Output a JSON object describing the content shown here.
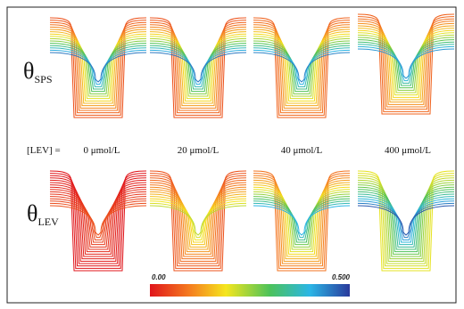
{
  "rows": [
    {
      "symbol": "θ",
      "subscript": "SPS"
    },
    {
      "symbol": "θ",
      "subscript": "LEV"
    }
  ],
  "concentration_label": "[LEV] =",
  "concentrations": [
    "0 μmol/L",
    "20 μmol/L",
    "40 μmol/L",
    "400 μmol/L"
  ],
  "colorbar": {
    "min_label": "0.00",
    "max_label": "0.500"
  }
}
